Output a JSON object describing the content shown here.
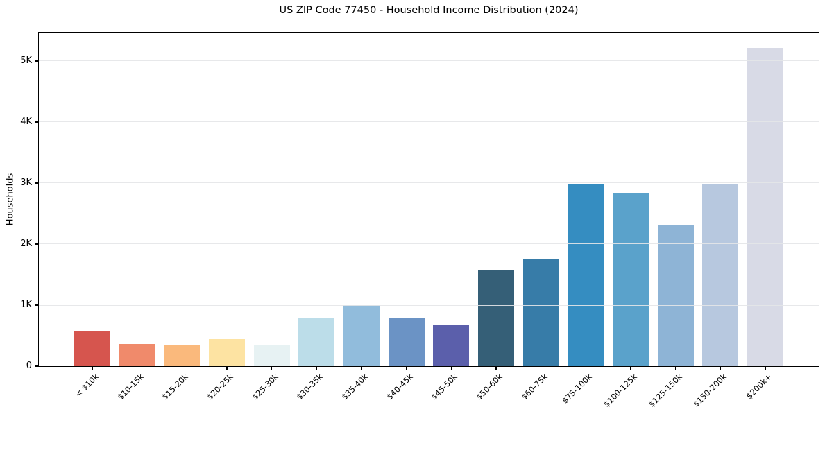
{
  "chart_data": {
    "type": "bar",
    "title": "US ZIP Code 77450 - Household Income Distribution (2024)",
    "xlabel": "",
    "ylabel": "Households",
    "categories": [
      "< $10k",
      "$10-15k",
      "$15-20k",
      "$20-25k",
      "$25-30k",
      "$30-35k",
      "$35-40k",
      "$40-45k",
      "$45-50k",
      "$50-60k",
      "$60-75k",
      "$75-100k",
      "$100-125k",
      "$125-150k",
      "$150-200k",
      "$200k+"
    ],
    "values": [
      570,
      365,
      350,
      440,
      350,
      780,
      1005,
      780,
      665,
      1565,
      1755,
      2975,
      2830,
      2320,
      2990,
      5210
    ],
    "bar_colors": [
      "#d6554e",
      "#f08a6b",
      "#fab97c",
      "#fde3a2",
      "#e7f2f3",
      "#bcdde9",
      "#91bcdc",
      "#6b93c5",
      "#5b5fab",
      "#355f77",
      "#377ca8",
      "#358dc1",
      "#5aa2cb",
      "#8eb4d6",
      "#b7c8df",
      "#d8dae6"
    ],
    "ylim": [
      0,
      5465
    ],
    "yticks": [
      {
        "value": 0,
        "label": "0"
      },
      {
        "value": 1000,
        "label": "1K"
      },
      {
        "value": 2000,
        "label": "2K"
      },
      {
        "value": 3000,
        "label": "3K"
      },
      {
        "value": 4000,
        "label": "4K"
      },
      {
        "value": 5000,
        "label": "5K"
      }
    ],
    "grid": "horizontal-above-bars",
    "legend": "none",
    "bar_width_fraction": 0.8,
    "x_edge_padding": 1.19
  },
  "colors": {
    "background": "#ffffff",
    "spine": "#000000",
    "gridline": "#e4e6e8",
    "tick": "#000000",
    "text": "#000000"
  }
}
